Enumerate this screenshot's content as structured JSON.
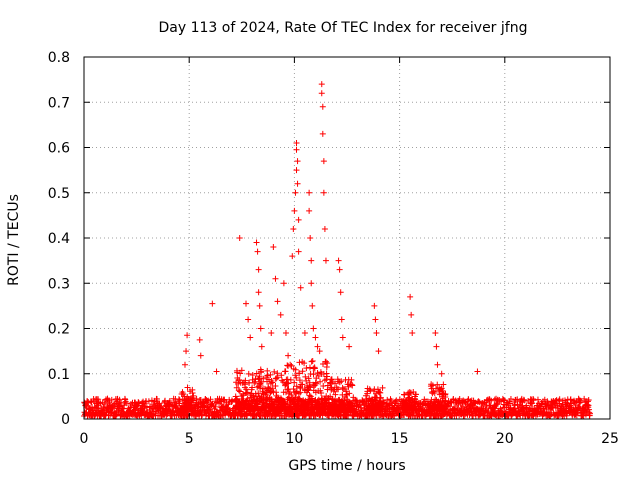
{
  "chart_data": {
    "type": "scatter",
    "title": "Day 113 of 2024, Rate Of TEC Index for receiver jfng",
    "xlabel": "GPS time / hours",
    "ylabel": "ROTI / TECUs",
    "xlim": [
      0,
      25
    ],
    "ylim": [
      0,
      0.8
    ],
    "xticks": [
      0,
      5,
      10,
      15,
      20,
      25
    ],
    "yticks": [
      0,
      0.1,
      0.2,
      0.3,
      0.4,
      0.5,
      0.6,
      0.7,
      0.8
    ],
    "grid": true,
    "marker": "+",
    "color": "#ff0000",
    "baseline_range": [
      0.0,
      0.045
    ],
    "series": [
      {
        "name": "ROTI",
        "x": [
          4.9,
          4.85,
          4.8,
          5.5,
          5.55,
          6.1,
          6.3,
          7.4,
          7.7,
          7.8,
          7.9,
          8.2,
          8.25,
          8.3,
          8.3,
          8.35,
          8.4,
          8.45,
          8.9,
          9.0,
          9.1,
          9.2,
          9.35,
          9.5,
          9.6,
          9.7,
          9.8,
          9.9,
          9.95,
          10.0,
          10.05,
          10.1,
          10.1,
          10.1,
          10.15,
          10.15,
          10.2,
          10.2,
          10.3,
          10.5,
          10.7,
          10.7,
          10.75,
          10.8,
          10.8,
          10.85,
          10.9,
          11.0,
          11.1,
          11.2,
          11.3,
          11.3,
          11.35,
          11.35,
          11.4,
          11.4,
          11.45,
          11.5,
          12.1,
          12.15,
          12.2,
          12.25,
          12.3,
          12.6,
          13.8,
          13.85,
          13.9,
          14.0,
          15.5,
          15.55,
          15.6,
          16.7,
          16.75,
          16.8,
          17.0,
          18.7
        ],
        "y": [
          0.185,
          0.15,
          0.12,
          0.175,
          0.14,
          0.255,
          0.105,
          0.4,
          0.255,
          0.22,
          0.18,
          0.39,
          0.37,
          0.33,
          0.28,
          0.25,
          0.2,
          0.16,
          0.19,
          0.38,
          0.31,
          0.26,
          0.23,
          0.3,
          0.19,
          0.14,
          0.12,
          0.36,
          0.42,
          0.46,
          0.5,
          0.55,
          0.61,
          0.595,
          0.57,
          0.52,
          0.44,
          0.37,
          0.29,
          0.19,
          0.5,
          0.46,
          0.4,
          0.35,
          0.3,
          0.25,
          0.2,
          0.18,
          0.16,
          0.15,
          0.74,
          0.72,
          0.69,
          0.63,
          0.57,
          0.5,
          0.42,
          0.35,
          0.35,
          0.33,
          0.28,
          0.22,
          0.18,
          0.16,
          0.25,
          0.22,
          0.19,
          0.15,
          0.27,
          0.23,
          0.19,
          0.19,
          0.16,
          0.12,
          0.1,
          0.105
        ]
      }
    ]
  }
}
